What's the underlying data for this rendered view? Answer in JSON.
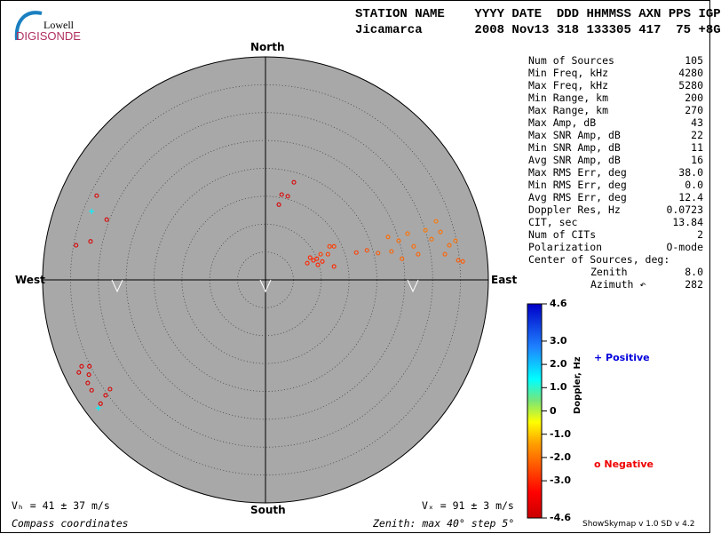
{
  "logo": {
    "line1": "Lowell",
    "line2": "DIGISONDE"
  },
  "header": {
    "labels": "STATION NAME    YYYY DATE  DDD HHMMSS AXN PPS IGP",
    "values": "Jicamarca       2008 Nov13 318 133305 417  75 +8G"
  },
  "stats": [
    {
      "label": "Num of Sources",
      "value": "105"
    },
    {
      "label": "Min Freq, kHz",
      "value": "4280"
    },
    {
      "label": "Max Freq, kHz",
      "value": "5280"
    },
    {
      "label": "Min Range, km",
      "value": "200"
    },
    {
      "label": "Max Range, km",
      "value": "270"
    },
    {
      "label": "Max Amp, dB",
      "value": "43"
    },
    {
      "label": "Max SNR Amp, dB",
      "value": "22"
    },
    {
      "label": "Min SNR Amp, dB",
      "value": "11"
    },
    {
      "label": "Avg SNR Amp, dB",
      "value": "16"
    },
    {
      "label": "Max RMS Err, deg",
      "value": "38.0"
    },
    {
      "label": "Min RMS Err, deg",
      "value": "0.0"
    },
    {
      "label": "Avg RMS Err, deg",
      "value": "12.4"
    },
    {
      "label": "Doppler Res, Hz",
      "value": "0.0723"
    },
    {
      "label": "CIT, sec",
      "value": "13.84"
    },
    {
      "label": "Num of CITs",
      "value": "2"
    },
    {
      "label": "Polarization",
      "value": "O-mode"
    },
    {
      "label": "Center of Sources, deg:",
      "value": ""
    },
    {
      "label": "Zenith",
      "value": "8.0"
    },
    {
      "label": "Azimuth ↶",
      "value": "282"
    }
  ],
  "footer": {
    "vh": "Vₕ = 41 ± 37 m/s",
    "vz": "Vₓ = 91 ± 3 m/s",
    "coords": "Compass coordinates",
    "zenith": "Zenith: max 40°  step 5°",
    "version": "ShowSkymap v 1.0   SD v 4.2"
  },
  "chart_data": {
    "type": "scatter",
    "coordinate_system": "polar skymap (east/north offsets in degrees of zenith)",
    "directions": {
      "north": "North",
      "south": "South",
      "east": "East",
      "west": "West"
    },
    "zenith_max_deg": 40,
    "ring_step_deg": 5,
    "colorbar": {
      "label": "Doppler, Hz",
      "min": -4.6,
      "max": 4.6,
      "ticks": [
        "4.6",
        "3.0",
        "2.0",
        "1.0",
        "0",
        "-1.0",
        "-2.0",
        "-3.0",
        "-4.6"
      ],
      "tick_values": [
        4.6,
        3.0,
        2.0,
        1.0,
        0,
        -1.0,
        -2.0,
        -3.0,
        -4.6
      ]
    },
    "legend": {
      "positive": "Positive",
      "negative": "Negative",
      "positive_color": "#0000dd",
      "negative_color": "#ee0000"
    },
    "points_east_north_doppler": [
      [
        -30.3,
        15.1,
        -4.2
      ],
      [
        -28.5,
        10.8,
        -4.2
      ],
      [
        -31.4,
        6.9,
        -4.2
      ],
      [
        -34,
        6.2,
        -4.2
      ],
      [
        -31.2,
        12.3,
        1.5
      ],
      [
        -33,
        -15.5,
        -4.2
      ],
      [
        -31.6,
        -15.5,
        -4.2
      ],
      [
        -33.5,
        -16.6,
        -4.2
      ],
      [
        -31.7,
        -17,
        -4.2
      ],
      [
        -31.9,
        -18.5,
        -4.2
      ],
      [
        -31.2,
        -19.8,
        -4.2
      ],
      [
        -27.9,
        -19.6,
        -4.2
      ],
      [
        -28.7,
        -20.7,
        -4.2
      ],
      [
        -29.6,
        -22.2,
        -4.2
      ],
      [
        -30,
        -23,
        1.5
      ],
      [
        5.1,
        17.5,
        -4.2
      ],
      [
        2.9,
        15.3,
        -4.2
      ],
      [
        4,
        15,
        -4.2
      ],
      [
        2.4,
        13.5,
        -4.2
      ],
      [
        7.5,
        3,
        -3
      ],
      [
        8.6,
        3.5,
        -3
      ],
      [
        9.4,
        2.7,
        -3
      ],
      [
        10.2,
        3.3,
        -3
      ],
      [
        11.5,
        6,
        -2.7
      ],
      [
        12.3,
        6,
        -2.7
      ],
      [
        11.2,
        4.6,
        -2.7
      ],
      [
        12.3,
        2.4,
        -3
      ],
      [
        9.2,
        3.8,
        -3
      ],
      [
        8,
        4,
        -3
      ],
      [
        9.9,
        4.6,
        -2.7
      ],
      [
        16.3,
        4.9,
        -2.7
      ],
      [
        18.2,
        5.3,
        -2.5
      ],
      [
        20.2,
        4.8,
        -2.3
      ],
      [
        22,
        7.7,
        -2.1
      ],
      [
        22.6,
        5.1,
        -2.2
      ],
      [
        23.9,
        7,
        -2.1
      ],
      [
        24.5,
        3.8,
        -2.2
      ],
      [
        25.5,
        8.3,
        -2.0
      ],
      [
        26.6,
        6,
        -2.1
      ],
      [
        27.4,
        4.6,
        -2.2
      ],
      [
        28.7,
        8.9,
        -1.9
      ],
      [
        29.8,
        7.3,
        -2.0
      ],
      [
        30.6,
        10.5,
        -1.9
      ],
      [
        31.4,
        8.6,
        -2.0
      ],
      [
        32.2,
        4.6,
        -2.2
      ],
      [
        33,
        6.2,
        -2.1
      ],
      [
        34.1,
        7,
        -2.0
      ],
      [
        34.6,
        3.5,
        -2.3
      ],
      [
        35.4,
        3.3,
        -2.3
      ]
    ]
  }
}
